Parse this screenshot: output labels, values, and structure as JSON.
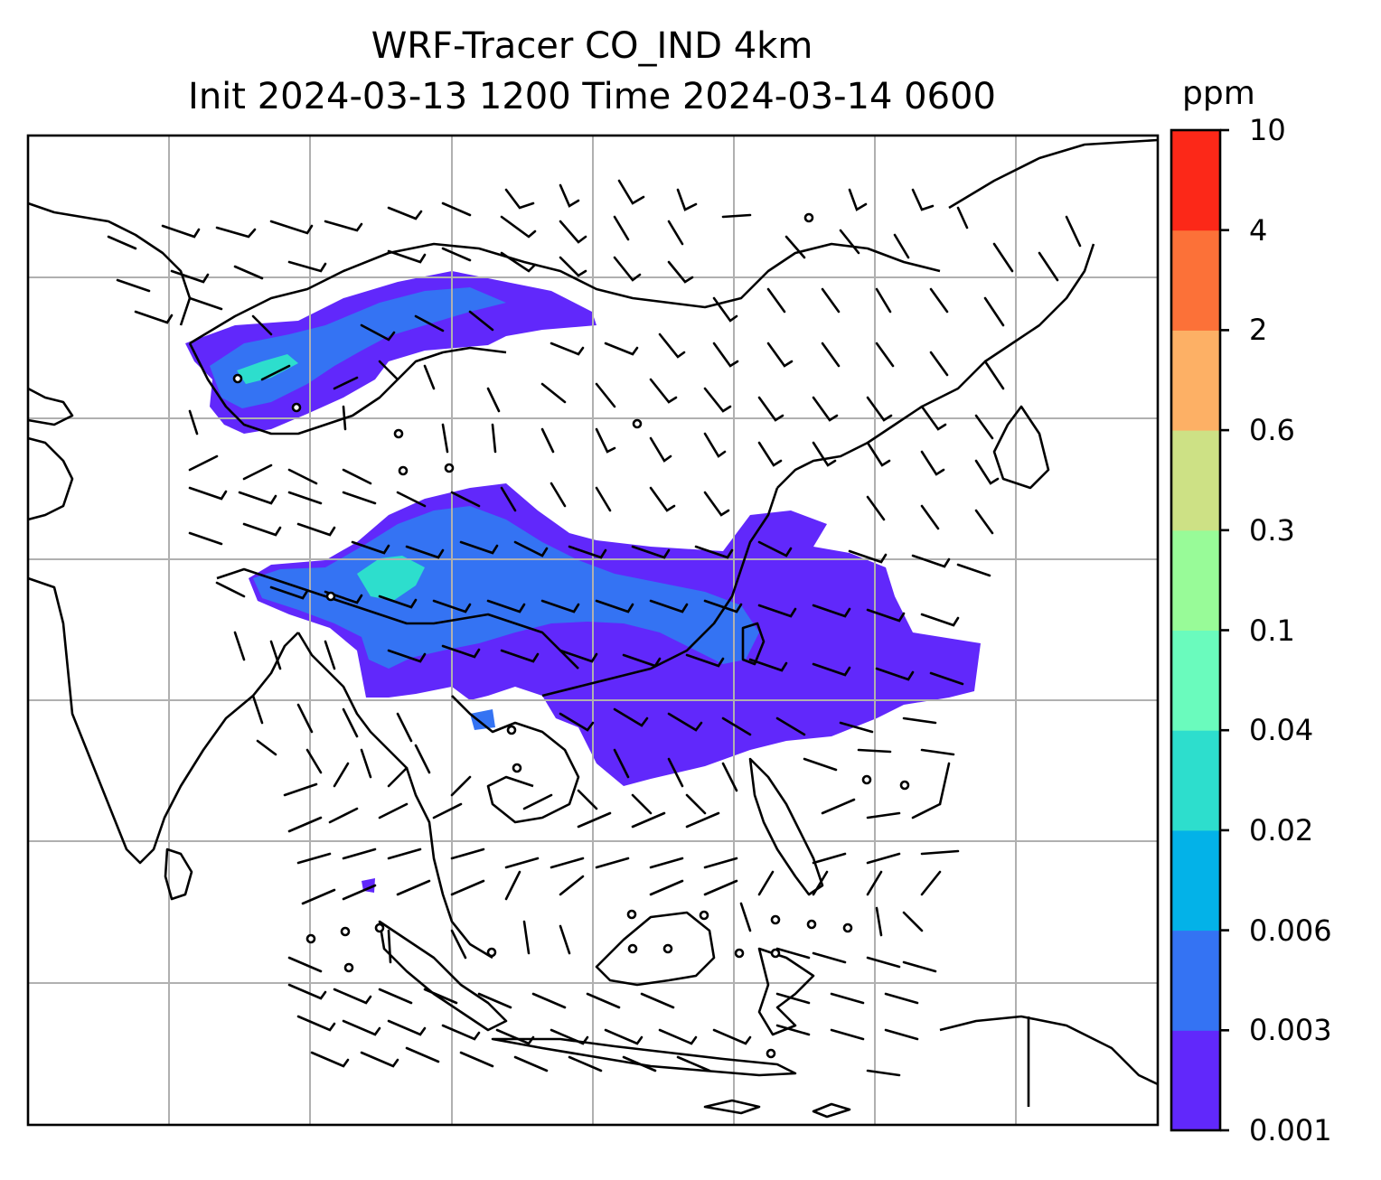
{
  "title": {
    "line1": "WRF-Tracer CO_IND 4km",
    "line2": "Init 2024-03-13 1200 Time 2024-03-14 0600"
  },
  "colorbar": {
    "unit": "ppm",
    "levels": [
      "0.001",
      "0.003",
      "0.006",
      "0.02",
      "0.04",
      "0.1",
      "0.3",
      "0.6",
      "2",
      "4",
      "10"
    ],
    "colors": [
      "#6128fb",
      "#3473f3",
      "#03b2e8",
      "#2ddecd",
      "#6afbbd",
      "#98fb98",
      "#cde185",
      "#fdb065",
      "#fc7138",
      "#fc2818"
    ]
  },
  "map": {
    "gridlines": true,
    "coastline_color": "#000000",
    "barb_color": "#000000",
    "plume_colors": {
      "light": "#6128fb",
      "mid": "#3473f3",
      "core": "#2ddecd"
    }
  }
}
